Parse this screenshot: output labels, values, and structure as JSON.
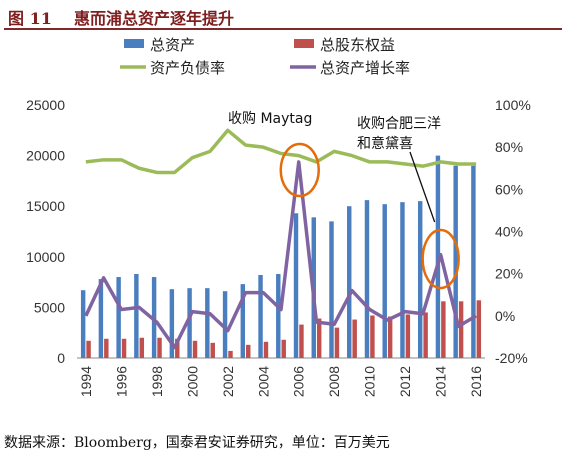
{
  "figure": {
    "label": "图 11",
    "title": "惠而浦总资产逐年提升",
    "source": "数据来源：Bloomberg，国泰君安证券研究，单位：百万美元"
  },
  "chart_data": {
    "type": "bar",
    "x": [
      1994,
      1995,
      1996,
      1997,
      1998,
      1999,
      2000,
      2001,
      2002,
      2003,
      2004,
      2005,
      2006,
      2007,
      2008,
      2009,
      2010,
      2011,
      2012,
      2013,
      2014,
      2015,
      2016
    ],
    "xticks": [
      "1994",
      "1996",
      "1998",
      "2000",
      "2002",
      "2004",
      "2006",
      "2008",
      "2010",
      "2012",
      "2014",
      "2016"
    ],
    "left_axis": {
      "ylim": [
        0,
        25000
      ],
      "ticks": [
        "0",
        "5000",
        "10000",
        "15000",
        "20000",
        "25000"
      ]
    },
    "right_axis": {
      "ylim": [
        -20,
        100
      ],
      "ticks": [
        "-20%",
        "0%",
        "20%",
        "40%",
        "60%",
        "80%",
        "100%"
      ]
    },
    "series": [
      {
        "name": "总资产",
        "type": "bar",
        "axis": "left",
        "color": "#4a7ebf",
        "values": [
          6700,
          7800,
          8000,
          8300,
          8000,
          6800,
          6900,
          6900,
          6600,
          7300,
          8200,
          8300,
          14300,
          13900,
          13500,
          15000,
          15600,
          15200,
          15400,
          15500,
          20000,
          19000,
          19000
        ]
      },
      {
        "name": "总股东权益",
        "type": "bar",
        "axis": "left",
        "color": "#c0504d",
        "values": [
          1700,
          1900,
          1900,
          2000,
          2000,
          1900,
          1700,
          1500,
          700,
          1300,
          1600,
          1800,
          3300,
          3900,
          3000,
          3800,
          4200,
          4100,
          4300,
          4500,
          5600,
          5600,
          5700
        ]
      },
      {
        "name": "资产负债率",
        "type": "line",
        "axis": "right",
        "color": "#9bbb59",
        "values": [
          73,
          74,
          74,
          70,
          68,
          68,
          75,
          78,
          88,
          81,
          80,
          77,
          76,
          73,
          78,
          76,
          73,
          73,
          72,
          71,
          73,
          72,
          72
        ]
      },
      {
        "name": "总资产增长率",
        "type": "line",
        "axis": "right",
        "color": "#8064a2",
        "values": [
          0,
          18,
          3,
          4,
          -3,
          -15,
          2,
          1,
          -7,
          11,
          11,
          3,
          73,
          -3,
          -4,
          12,
          3,
          -2,
          2,
          1,
          29,
          -5,
          0
        ]
      }
    ],
    "annotations": [
      {
        "text": "收购 Maytag",
        "year": 2006
      },
      {
        "lines": [
          "收购合肥三洋",
          "和意黛喜"
        ],
        "year": 2014
      }
    ],
    "legend": "top"
  }
}
